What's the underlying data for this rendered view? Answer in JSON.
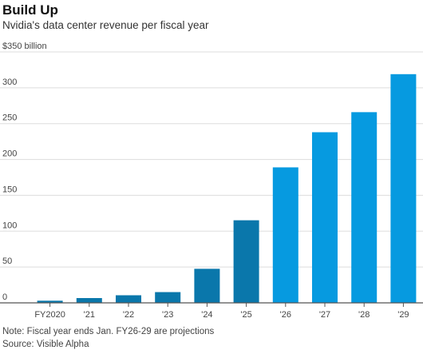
{
  "header": {
    "title": "Build Up",
    "subtitle": "Nvidia's data center revenue per fiscal year"
  },
  "footer": {
    "note": "Note: Fiscal year ends Jan. FY26-29 are projections",
    "source": "Source: Visible Alpha"
  },
  "chart_data": {
    "type": "bar",
    "title": "Build Up",
    "subtitle": "Nvidia's data center revenue per fiscal year",
    "categories": [
      "FY2020",
      "'21",
      "'22",
      "'23",
      "'24",
      "'25",
      "'26",
      "'27",
      "'28",
      "'29"
    ],
    "values": [
      3.0,
      6.7,
      10.6,
      15.0,
      47.5,
      115.2,
      189,
      238,
      266,
      319
    ],
    "projected": [
      false,
      false,
      false,
      false,
      false,
      false,
      true,
      true,
      true,
      true
    ],
    "ylim": [
      0,
      350
    ],
    "yticks": [
      0,
      50,
      100,
      150,
      200,
      250,
      300,
      350
    ],
    "ytick_labels": [
      "0",
      "50",
      "100",
      "150",
      "200",
      "250",
      "300",
      "$350 billion"
    ],
    "xlabel": "",
    "ylabel": "",
    "grid": true,
    "colors": {
      "actual": "#0a77ab",
      "projected": "#069ae0",
      "grid": "#dddddd",
      "axis": "#555555"
    }
  }
}
